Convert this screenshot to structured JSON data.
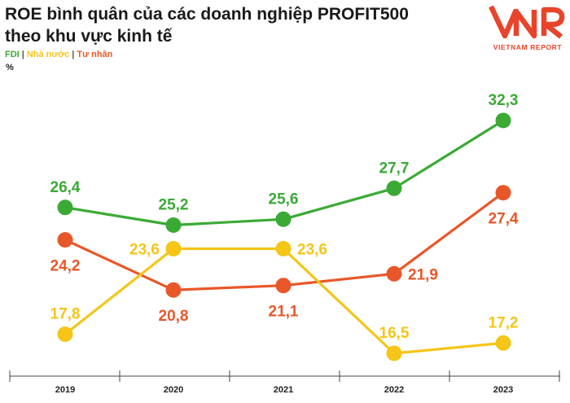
{
  "header": {
    "title_line1": "ROE bình quân của các doanh nghiệp PROFIT500",
    "title_line2": "theo khu vực kinh tế",
    "unit": "%"
  },
  "legend": [
    {
      "label": "FDI",
      "color": "#3aaa35"
    },
    {
      "label": "Nhà nước",
      "color": "#f5c518"
    },
    {
      "label": "Tư nhân",
      "color": "#e8572a"
    }
  ],
  "logo": {
    "mark": "VNR",
    "caption": "VIETNAM REPORT",
    "color": "#e8432b"
  },
  "chart_data": {
    "type": "line",
    "x": [
      "2019",
      "2020",
      "2021",
      "2022",
      "2023"
    ],
    "ylabel": "%",
    "series": [
      {
        "name": "FDI",
        "color": "#3aaa35",
        "values": [
          26.4,
          25.2,
          25.6,
          27.7,
          32.3
        ],
        "labels": [
          "26,4",
          "25,2",
          "25,6",
          "27,7",
          "32,3"
        ],
        "label_pos": [
          "above",
          "above",
          "above",
          "above",
          "above"
        ]
      },
      {
        "name": "Nhà nước",
        "color": "#f5c518",
        "values": [
          17.8,
          23.6,
          23.6,
          16.5,
          17.2
        ],
        "labels": [
          "17,8",
          "23,6",
          "23,6",
          "16,5",
          "17,2"
        ],
        "label_pos": [
          "above",
          "left",
          "right",
          "above",
          "above"
        ]
      },
      {
        "name": "Tư nhân",
        "color": "#e8572a",
        "values": [
          24.2,
          20.8,
          21.1,
          21.9,
          27.4
        ],
        "labels": [
          "24,2",
          "20,8",
          "21,1",
          "21,9",
          "27,4"
        ],
        "label_pos": [
          "below",
          "below",
          "below",
          "right",
          "below"
        ]
      }
    ],
    "grid": false,
    "legend_position": "top-left"
  }
}
